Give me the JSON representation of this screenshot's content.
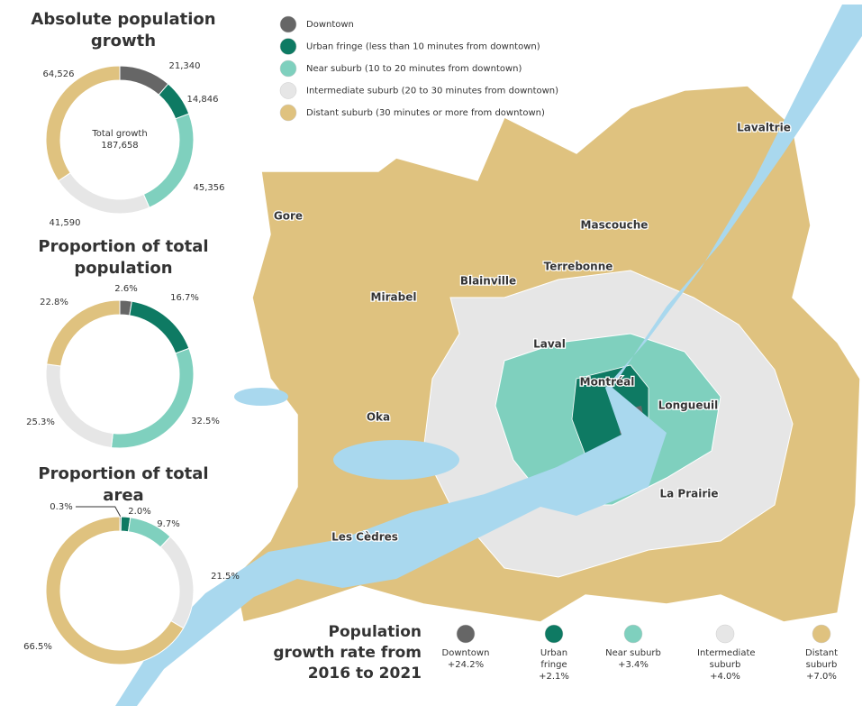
{
  "chart_data": [
    {
      "type": "pie",
      "title": "Absolute population growth",
      "values": [
        21340,
        14846,
        45356,
        41590,
        64526
      ],
      "value_labels": [
        "21,340",
        "14,846",
        "45,356",
        "41,590",
        "64,526"
      ],
      "colors": [
        "#666666",
        "#0e7a63",
        "#7fd0be",
        "#e6e6e6",
        "#dfc27f"
      ],
      "annotations": [
        "Total growth",
        "187,658"
      ]
    },
    {
      "type": "pie",
      "title": "Proportion of total population",
      "values": [
        2.6,
        16.7,
        32.5,
        25.3,
        22.8
      ],
      "value_labels": [
        "2.6%",
        "16.7%",
        "32.5%",
        "25.3%",
        "22.8%"
      ],
      "colors": [
        "#666666",
        "#0e7a63",
        "#7fd0be",
        "#e6e6e6",
        "#dfc27f"
      ]
    },
    {
      "type": "pie",
      "title": "Proportion of total area",
      "values": [
        0.3,
        2.0,
        9.7,
        21.5,
        66.5
      ],
      "value_labels": [
        "0.3%",
        "2.0%",
        "9.7%",
        "21.5%",
        "66.5%"
      ],
      "colors": [
        "#666666",
        "#0e7a63",
        "#7fd0be",
        "#e6e6e6",
        "#dfc27f"
      ]
    }
  ],
  "legend": [
    {
      "name": "Downtown",
      "color": "#666666"
    },
    {
      "name": "Urban fringe (less than 10 minutes from downtown)",
      "color": "#0e7a63"
    },
    {
      "name": "Near suburb (10 to 20 minutes from downtown)",
      "color": "#7fd0be"
    },
    {
      "name": "Intermediate suburb (20 to 30 minutes from downtown)",
      "color": "#e6e6e6"
    },
    {
      "name": "Distant suburb (30 minutes or more from downtown)",
      "color": "#dfc27f"
    }
  ],
  "map": {
    "labels": [
      "Gore",
      "Mirabel",
      "Blainville",
      "Terrebonne",
      "Mascouche",
      "Lavaltrie",
      "Laval",
      "Montréal",
      "Longueuil",
      "Oka",
      "La Prairie",
      "Les Cèdres"
    ]
  },
  "growth": {
    "title": "Population growth rate from 2016 to 2021",
    "items": [
      {
        "name": "Downtown",
        "rate": "+24.2%",
        "color": "#666666"
      },
      {
        "name": "Urban fringe",
        "rate": "+2.1%",
        "color": "#0e7a63"
      },
      {
        "name": "Near suburb",
        "rate": "+3.4%",
        "color": "#7fd0be"
      },
      {
        "name": "Intermediate suburb",
        "rate": "+4.0%",
        "color": "#e6e6e6"
      },
      {
        "name": "Distant suburb",
        "rate": "+7.0%",
        "color": "#dfc27f"
      }
    ]
  }
}
